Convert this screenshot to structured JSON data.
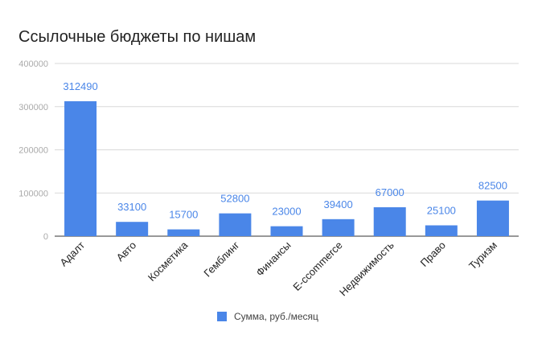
{
  "chart_data": {
    "type": "bar",
    "title": "Ссылочные бюджеты по нишам",
    "categories": [
      "Адалт",
      "Авто",
      "Косметика",
      "Гемблинг",
      "Финансы",
      "E-ccommerce",
      "Недвижимость",
      "Право",
      "Туризм"
    ],
    "series": [
      {
        "name": "Сумма, руб./месяц",
        "values": [
          312490,
          33100,
          15700,
          52800,
          23000,
          39400,
          67000,
          25100,
          82500
        ],
        "color": "#4a86e8"
      }
    ],
    "data_labels": [
      "312490",
      "33100",
      "15700",
      "52800",
      "23000",
      "39400",
      "67000",
      "25100",
      "82500"
    ],
    "y_ticks": [
      0,
      100000,
      200000,
      300000,
      400000
    ],
    "y_tick_labels": [
      "0",
      "100000",
      "200000",
      "300000",
      "400000"
    ],
    "ylim": [
      0,
      400000
    ],
    "grid": true,
    "legend_position": "bottom",
    "colors": {
      "bar": "#4a86e8",
      "label": "#4a86e8",
      "grid": "#d9d9d9",
      "axis": "#333333",
      "tick_text": "#aaaaaa"
    }
  }
}
